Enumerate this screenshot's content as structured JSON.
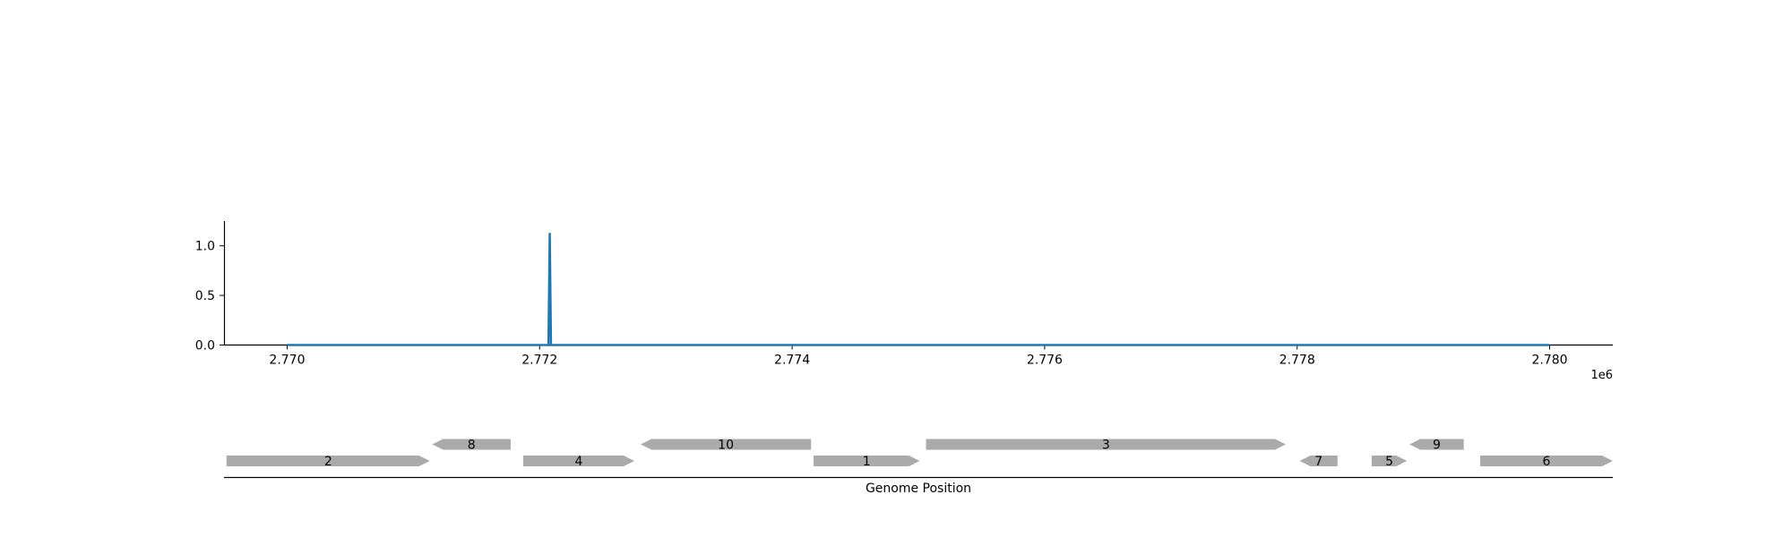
{
  "chart_data": [
    {
      "type": "line",
      "x_offset_label": "1e6",
      "xlim": [
        2769500,
        2780500
      ],
      "ylim": [
        0,
        1.25
      ],
      "xticks": [
        2770000,
        2772000,
        2774000,
        2776000,
        2778000,
        2780000
      ],
      "xtick_labels": [
        "2.770",
        "2.772",
        "2.774",
        "2.776",
        "2.778",
        "2.780"
      ],
      "yticks": [
        0.0,
        0.5,
        1.0
      ],
      "ytick_labels": [
        "0.0",
        "0.5",
        "1.0"
      ],
      "grid": false,
      "colors": {
        "series": "#1f77b4",
        "axis": "#000000"
      },
      "series": [
        {
          "x": [
            2770000,
            2772070,
            2772080,
            2772090,
            2780000
          ],
          "y": [
            0,
            0,
            1.13,
            0,
            0
          ]
        }
      ]
    },
    {
      "type": "gene_track",
      "xlabel": "Genome Position",
      "xlim": [
        2769500,
        2780500
      ],
      "colors": {
        "gene": "#aaaaaa",
        "label": "#000000"
      },
      "genes": [
        {
          "label": "2",
          "start": 2769520,
          "end": 2771130,
          "strand": "+",
          "row": 0
        },
        {
          "label": "8",
          "start": 2771150,
          "end": 2771770,
          "strand": "-",
          "row": 1
        },
        {
          "label": "4",
          "start": 2771870,
          "end": 2772750,
          "strand": "+",
          "row": 0
        },
        {
          "label": "10",
          "start": 2772800,
          "end": 2774150,
          "strand": "-",
          "row": 1
        },
        {
          "label": "1",
          "start": 2774170,
          "end": 2775010,
          "strand": "+",
          "row": 0
        },
        {
          "label": "3",
          "start": 2775060,
          "end": 2777910,
          "strand": "+",
          "row": 1
        },
        {
          "label": "7",
          "start": 2778020,
          "end": 2778320,
          "strand": "-",
          "row": 0
        },
        {
          "label": "5",
          "start": 2778590,
          "end": 2778870,
          "strand": "+",
          "row": 0
        },
        {
          "label": "9",
          "start": 2778890,
          "end": 2779320,
          "strand": "-",
          "row": 1
        },
        {
          "label": "6",
          "start": 2779450,
          "end": 2780500,
          "strand": "+",
          "row": 0
        }
      ]
    }
  ]
}
